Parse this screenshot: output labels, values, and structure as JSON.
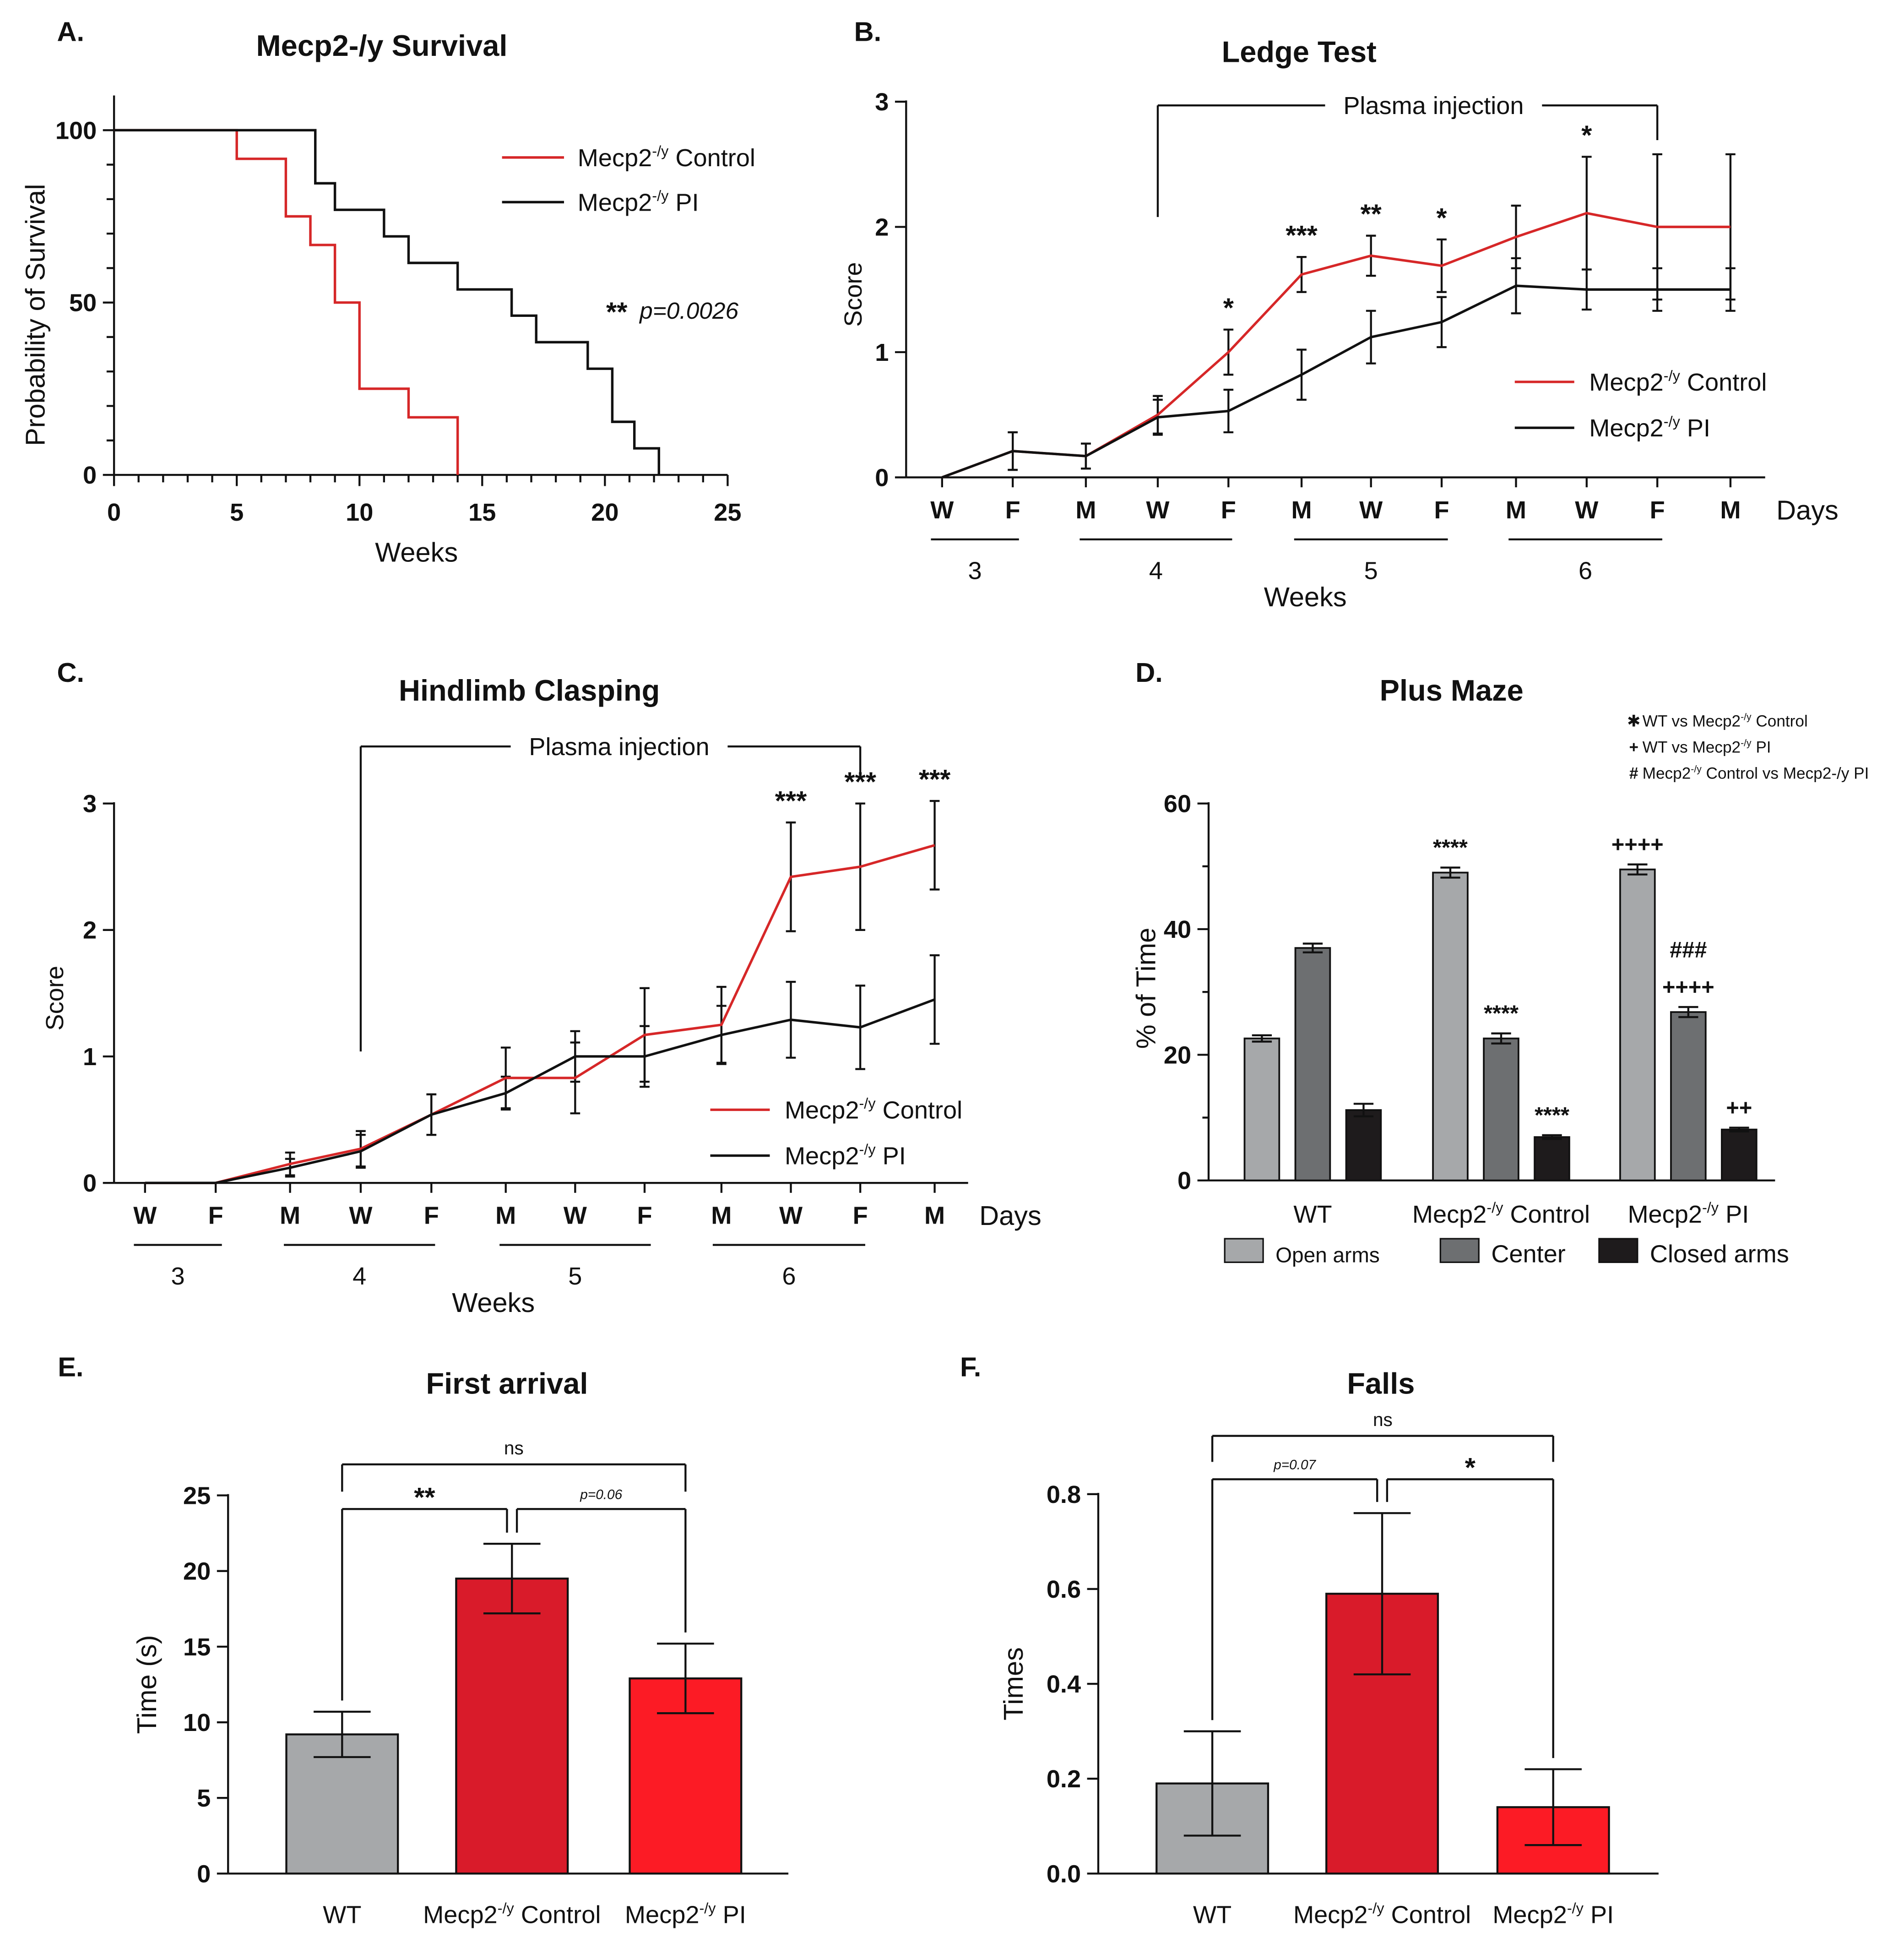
{
  "chart_data": [
    {
      "panel": "A.",
      "type": "line",
      "title": "Mecp2-/y Survival",
      "xlabel": "Weeks",
      "ylabel": "Probability of Survival",
      "xlim": [
        0,
        25
      ],
      "ylim": [
        0,
        100
      ],
      "xticks": [
        "0",
        "5",
        "10",
        "15",
        "20",
        "25"
      ],
      "yticks": [
        "0",
        "50",
        "100"
      ],
      "legend": [
        "Mecp2-/y Control",
        "Mecp2-/y PI"
      ],
      "annotation": {
        "stars": "**",
        "p": "p=0.0026"
      },
      "series": [
        {
          "name": "Mecp2-/y Control",
          "color": "#d62728",
          "steps": [
            [
              0,
              100
            ],
            [
              5,
              91.7
            ],
            [
              7,
              75
            ],
            [
              8,
              66.7
            ],
            [
              9,
              50
            ],
            [
              10,
              25
            ],
            [
              12,
              16.7
            ],
            [
              14,
              0
            ]
          ]
        },
        {
          "name": "Mecp2-/y PI",
          "color": "#111111",
          "steps": [
            [
              0,
              100
            ],
            [
              8.2,
              84.6
            ],
            [
              9,
              76.9
            ],
            [
              11,
              69.2
            ],
            [
              12,
              61.5
            ],
            [
              14,
              53.8
            ],
            [
              16.2,
              46.2
            ],
            [
              17.2,
              38.5
            ],
            [
              19.3,
              30.8
            ],
            [
              20.3,
              15.4
            ],
            [
              21.2,
              7.7
            ],
            [
              22.2,
              0
            ]
          ]
        }
      ]
    },
    {
      "panel": "B.",
      "type": "line",
      "title": "Ledge Test",
      "xlabel": "Weeks",
      "ylabel": "Score",
      "ylim": [
        0,
        3
      ],
      "yticks": [
        "0",
        "1",
        "2",
        "3"
      ],
      "days_label": "Days",
      "days": [
        "W",
        "F",
        "M",
        "W",
        "F",
        "M",
        "W",
        "F",
        "M",
        "W",
        "F",
        "M"
      ],
      "weeks": [
        "3",
        "4",
        "5",
        "6"
      ],
      "bracket_label": "Plasma injection",
      "legend": [
        "Mecp2-/y Control",
        "Mecp2-/y PI"
      ],
      "sig": [
        "",
        "",
        "",
        "",
        "*",
        "***",
        "**",
        "*",
        "",
        "*",
        "",
        ""
      ],
      "series": [
        {
          "name": "Mecp2-/y Control",
          "color": "#d62728",
          "values": [
            0,
            0.21,
            0.17,
            0.5,
            1.0,
            1.62,
            1.77,
            1.69,
            1.92,
            2.11,
            2.0,
            2.0
          ],
          "errors": [
            0,
            0.15,
            0.1,
            0.15,
            0.18,
            0.14,
            0.16,
            0.21,
            0.25,
            0.45,
            0.58,
            0.58
          ]
        },
        {
          "name": "Mecp2-/y PI",
          "color": "#111111",
          "values": [
            0,
            0.21,
            0.17,
            0.48,
            0.53,
            0.82,
            1.12,
            1.24,
            1.53,
            1.5,
            1.5,
            1.5
          ],
          "errors": [
            0,
            0.15,
            0.1,
            0.14,
            0.17,
            0.2,
            0.21,
            0.2,
            0.22,
            0.16,
            0.17,
            0.17
          ]
        }
      ]
    },
    {
      "panel": "C.",
      "type": "line",
      "title": "Hindlimb Clasping",
      "xlabel": "Weeks",
      "ylabel": "Score",
      "ylim": [
        0,
        3
      ],
      "yticks": [
        "0",
        "1",
        "2",
        "3"
      ],
      "days_label": "Days",
      "days": [
        "W",
        "F",
        "M",
        "W",
        "F",
        "M",
        "W",
        "F",
        "M",
        "W",
        "F",
        "M"
      ],
      "weeks": [
        "3",
        "4",
        "5",
        "6"
      ],
      "bracket_label": "Plasma injection",
      "legend": [
        "Mecp2-/y Control",
        "Mecp2-/y PI"
      ],
      "sig": [
        "",
        "",
        "",
        "",
        "",
        "",
        "",
        "",
        "",
        "***",
        "***",
        "***"
      ],
      "series": [
        {
          "name": "Mecp2-/y Control",
          "color": "#d62728",
          "values": [
            0,
            0,
            0.15,
            0.27,
            0.54,
            0.83,
            0.83,
            1.17,
            1.25,
            2.42,
            2.5,
            2.67
          ],
          "errors": [
            0,
            0,
            0.09,
            0.14,
            0.16,
            0.24,
            0.28,
            0.37,
            0.3,
            0.43,
            0.5,
            0.35
          ]
        },
        {
          "name": "Mecp2-/y PI",
          "color": "#111111",
          "values": [
            0,
            0,
            0.12,
            0.25,
            0.54,
            0.71,
            1.0,
            1.0,
            1.17,
            1.29,
            1.23,
            1.45
          ],
          "errors": [
            0,
            0,
            0.07,
            0.13,
            0.16,
            0.13,
            0.2,
            0.24,
            0.23,
            0.3,
            0.33,
            0.35
          ]
        }
      ]
    },
    {
      "panel": "D.",
      "type": "bar",
      "title": "Plus Maze",
      "ylabel": "% of Time",
      "ylim": [
        0,
        60
      ],
      "yticks": [
        "0",
        "20",
        "40",
        "60"
      ],
      "categories": [
        "WT",
        "Mecp2-/y Control",
        "Mecp2-/y PI"
      ],
      "key": [
        "WT vs Mecp2-/y Control",
        "WT vs Mecp2-/y PI",
        "Mecp2-/y Control vs Mecp2-/y PI"
      ],
      "key_symbols": [
        "✱",
        "+",
        "#"
      ],
      "series": [
        {
          "name": "Open arms",
          "color": "#a6a8aa",
          "values": [
            22.6,
            49.0,
            49.5
          ],
          "errors": [
            0.5,
            0.8,
            0.8
          ],
          "sig": [
            "",
            "****",
            "++++"
          ]
        },
        {
          "name": "Center",
          "color": "#6d6f71",
          "values": [
            37.0,
            22.6,
            26.8
          ],
          "errors": [
            0.7,
            0.8,
            0.8
          ],
          "sig": [
            "",
            "****",
            "++++"
          ]
        },
        {
          "name": "Closed arms",
          "color": "#1e1b1c",
          "values": [
            11.2,
            6.9,
            8.1
          ],
          "errors": [
            1.0,
            0.3,
            0.3
          ],
          "sig": [
            "",
            "****",
            "++"
          ]
        }
      ],
      "extra_sig": {
        "category": 2,
        "series": 1,
        "text": "###"
      }
    },
    {
      "panel": "E.",
      "type": "bar",
      "title": "First arrival",
      "ylabel": "Time (s)",
      "ylim": [
        0,
        25
      ],
      "yticks": [
        "0",
        "5",
        "10",
        "15",
        "20",
        "25"
      ],
      "categories": [
        "WT",
        "Mecp2-/y Control",
        "Mecp2-/y PI"
      ],
      "colors": [
        "#a6a8aa",
        "#d91b2a",
        "#fc1b25"
      ],
      "values": [
        9.2,
        19.5,
        12.9
      ],
      "errors": [
        1.5,
        2.3,
        2.3
      ],
      "comparisons": [
        {
          "from": 0,
          "to": 1,
          "label": "**",
          "level": 1
        },
        {
          "from": 1,
          "to": 2,
          "label": "p=0.06",
          "level": 1
        },
        {
          "from": 0,
          "to": 2,
          "label": "ns",
          "level": 2
        }
      ]
    },
    {
      "panel": "F.",
      "type": "bar",
      "title": "Falls",
      "ylabel": "Times",
      "ylim": [
        0,
        0.8
      ],
      "yticks": [
        "0.0",
        "0.2",
        "0.4",
        "0.6",
        "0.8"
      ],
      "categories": [
        "WT",
        "Mecp2-/y Control",
        "Mecp2-/y PI"
      ],
      "colors": [
        "#a6a8aa",
        "#d91b2a",
        "#fc1b25"
      ],
      "values": [
        0.19,
        0.59,
        0.14
      ],
      "errors": [
        0.11,
        0.17,
        0.08
      ],
      "comparisons": [
        {
          "from": 0,
          "to": 1,
          "label": "p=0.07",
          "level": 1
        },
        {
          "from": 1,
          "to": 2,
          "label": "*",
          "level": 1
        },
        {
          "from": 0,
          "to": 2,
          "label": "ns",
          "level": 2
        }
      ]
    }
  ]
}
